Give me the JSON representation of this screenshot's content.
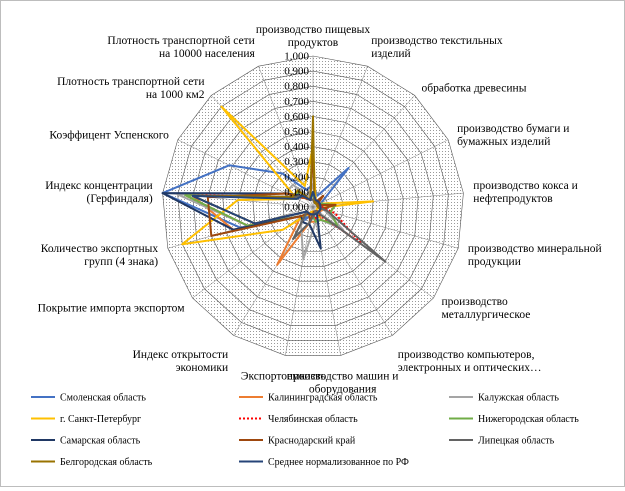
{
  "chart_data": {
    "type": "radar",
    "title": "",
    "ticks": [
      "0,000",
      "0,100",
      "0,200",
      "0,300",
      "0,400",
      "0,500",
      "0,600",
      "0,700",
      "0,800",
      "0,900",
      "1,000"
    ],
    "rlim": [
      0,
      1
    ],
    "grid": true,
    "legend_position": "bottom",
    "axes": [
      [
        "производство пищевых",
        "продуктов"
      ],
      [
        "производство текстильных",
        "изделий"
      ],
      [
        "обработка древесины"
      ],
      [
        "производство бумаги и",
        "бумажных изделий"
      ],
      [
        "производство кокса и",
        "нефтепродуктов"
      ],
      [
        "производство минеральной",
        "продукции"
      ],
      [
        "производство",
        "металлургическое"
      ],
      [
        "производство компьютеров,",
        "электронных и оптических…"
      ],
      [
        "производство машин и",
        "оборудования"
      ],
      [
        "Экспортоемкость"
      ],
      [
        "Индекс открытости",
        "экономики"
      ],
      [
        "Покрытие импорта экспортом"
      ],
      [
        "Количество экспортных",
        "групп (4 знака)"
      ],
      [
        "Индекс концентрации",
        "(Герфиндаля)"
      ],
      [
        "Коэффицент Успенского"
      ],
      [
        "Плотность транспортной сети",
        "на 1000 км2"
      ],
      [
        "Плотность транспортной сети",
        "на 10000 населения"
      ]
    ],
    "series": [
      {
        "name": "Смоленская область",
        "color": "#4472c4",
        "dash": "",
        "values": [
          0.15,
          0.08,
          0.35,
          0.06,
          0.04,
          0.05,
          0.06,
          0.05,
          0.1,
          0.05,
          0.1,
          0.05,
          0.5,
          1.0,
          0.62,
          0.3,
          0.12
        ]
      },
      {
        "name": "Калининградская область",
        "color": "#ed7d31",
        "dash": "",
        "values": [
          0.15,
          0.05,
          0.05,
          0.03,
          0.03,
          0.07,
          0.05,
          0.1,
          0.1,
          0.1,
          0.45,
          0.1,
          0.55,
          0.8,
          0.2,
          0.1,
          0.08
        ]
      },
      {
        "name": "Калужская область",
        "color": "#a5a5a5",
        "dash": "",
        "values": [
          0.15,
          0.05,
          0.05,
          0.03,
          0.03,
          0.08,
          0.25,
          0.1,
          0.1,
          0.35,
          0.15,
          0.1,
          0.45,
          0.9,
          0.2,
          0.2,
          0.08
        ]
      },
      {
        "name": "г. Санкт-Петербург",
        "color": "#ffc000",
        "dash": "",
        "values": [
          0.4,
          0.05,
          0.05,
          0.05,
          0.4,
          0.03,
          0.03,
          0.08,
          0.03,
          0.03,
          0.05,
          0.25,
          0.9,
          0.5,
          0.12,
          0.9,
          0.15
        ]
      },
      {
        "name": "Челябинская область",
        "color": "#ff0000",
        "dash": "2,2",
        "values": [
          0.05,
          0.03,
          0.03,
          0.03,
          0.05,
          0.15,
          0.4,
          0.05,
          0.08,
          0.05,
          0.05,
          0.05,
          0.45,
          0.85,
          0.15,
          0.08,
          0.05
        ]
      },
      {
        "name": "Нижегородская область",
        "color": "#70ad47",
        "dash": "",
        "values": [
          0.1,
          0.03,
          0.05,
          0.05,
          0.15,
          0.12,
          0.2,
          0.1,
          0.1,
          0.05,
          0.05,
          0.1,
          0.45,
          0.85,
          0.12,
          0.15,
          0.05
        ]
      },
      {
        "name": "Самарская область",
        "color": "#203864",
        "dash": "",
        "values": [
          0.05,
          0.03,
          0.03,
          0.05,
          0.05,
          0.05,
          0.05,
          0.05,
          0.28,
          0.12,
          0.12,
          0.1,
          0.55,
          1.0,
          0.2,
          0.1,
          0.05
        ]
      },
      {
        "name": "Краснодарский край",
        "color": "#9e480e",
        "dash": "",
        "values": [
          0.4,
          0.03,
          0.1,
          0.03,
          0.15,
          0.05,
          0.05,
          0.03,
          0.03,
          0.1,
          0.05,
          0.1,
          0.7,
          0.7,
          0.2,
          0.08,
          0.05
        ]
      },
      {
        "name": "Липецкая область",
        "color": "#636363",
        "dash": "",
        "values": [
          0.05,
          0.03,
          0.03,
          0.03,
          0.03,
          0.1,
          0.6,
          0.03,
          0.05,
          0.1,
          0.25,
          0.05,
          0.4,
          0.8,
          0.15,
          0.1,
          0.05
        ]
      },
      {
        "name": "Белгородская область",
        "color": "#997300",
        "dash": "",
        "values": [
          0.6,
          0.03,
          0.03,
          0.03,
          0.03,
          0.05,
          0.05,
          0.05,
          0.05,
          0.05,
          0.05,
          0.05,
          0.4,
          0.8,
          0.15,
          0.15,
          0.05
        ]
      },
      {
        "name": "Среднее нормализованное по РФ",
        "color": "#264478",
        "dash": "",
        "values": [
          0.1,
          0.05,
          0.05,
          0.05,
          0.05,
          0.05,
          0.05,
          0.05,
          0.05,
          0.05,
          0.05,
          0.05,
          0.4,
          0.8,
          0.12,
          0.1,
          0.05
        ]
      }
    ]
  }
}
